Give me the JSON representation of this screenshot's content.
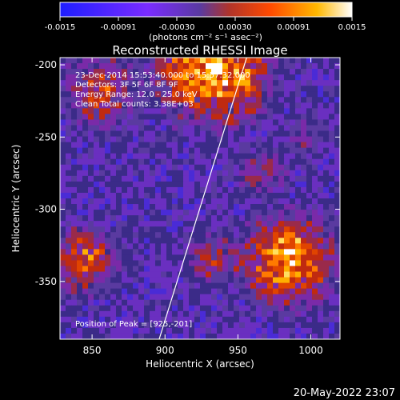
{
  "colorbar": {
    "ticks": [
      "-0.0015",
      "-0.00091",
      "-0.00030",
      "0.00030",
      "0.00091",
      "0.0015"
    ],
    "unit_label": "(photons cm⁻² s⁻¹ asec⁻²)",
    "gradient_stops": [
      "#1e1eff",
      "#7a2cff",
      "#5a3aa0",
      "#b0342a",
      "#ff4a00",
      "#ffb800",
      "#ffffff"
    ]
  },
  "chart_data": {
    "type": "heatmap",
    "title": "Reconstructed RHESSI Image",
    "xlabel": "Heliocentric X (arcsec)",
    "ylabel": "Heliocentric Y (arcsec)",
    "xlim": [
      828,
      1020
    ],
    "ylim": [
      -390,
      -195
    ],
    "xticks": [
      "850",
      "900",
      "950",
      "1000"
    ],
    "yticks": [
      "-200",
      "-250",
      "-300",
      "-350"
    ],
    "xtick_values": [
      850,
      900,
      950,
      1000
    ],
    "ytick_values": [
      -200,
      -250,
      -300,
      -350
    ],
    "annotations": [
      "23-Dec-2014 15:53:40.000 to 15:57:32.000",
      "Detectors: 3F 5F 6F 8F 9F",
      "Energy Range: 12.0 - 25.0 keV",
      "Clean     Total counts: 3.38E+03"
    ],
    "peak_label": "Position of Peak = [925,-201]",
    "peak_position": [
      925,
      -201
    ],
    "limb_line": {
      "x": [
        896,
        956
      ],
      "y": [
        -390,
        -195
      ]
    }
  },
  "footer": {
    "date": "20-May-2022 23:07"
  }
}
